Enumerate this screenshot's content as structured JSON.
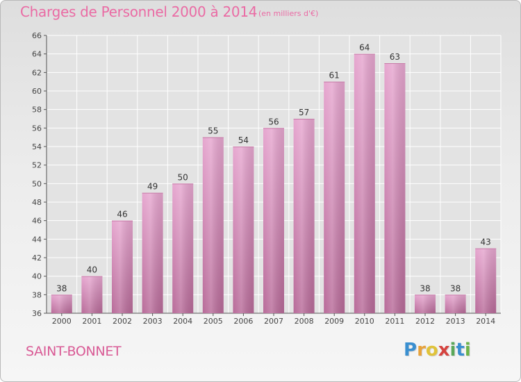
{
  "header": {
    "title": "Charges de Personnel 2000 à 2014",
    "subtitle": "(en milliers d'€)"
  },
  "footer": {
    "commune": "SAINT-BONNET",
    "logo": {
      "letters": [
        "P",
        "r",
        "o",
        "x",
        "i",
        "t",
        "i"
      ],
      "colors": [
        "#3a8fd0",
        "#e8a23a",
        "#e0c33a",
        "#d5433f",
        "#5aa85a",
        "#3a8fd0",
        "#6cb44a"
      ]
    }
  },
  "chart_data": {
    "type": "bar",
    "categories": [
      "2000",
      "2001",
      "2002",
      "2003",
      "2004",
      "2005",
      "2006",
      "2007",
      "2008",
      "2009",
      "2010",
      "2011",
      "2012",
      "2013",
      "2014"
    ],
    "values": [
      38,
      40,
      46,
      49,
      50,
      55,
      54,
      56,
      57,
      61,
      64,
      63,
      38,
      38,
      43
    ],
    "title": "Charges de Personnel 2000 à 2014",
    "ylim": [
      36,
      66
    ],
    "yticks": [
      36,
      38,
      40,
      42,
      44,
      46,
      48,
      50,
      52,
      54,
      56,
      58,
      60,
      62,
      64,
      66
    ],
    "grid": true,
    "bar_color": "#d98bbb",
    "grid_color": "#ffffff"
  }
}
